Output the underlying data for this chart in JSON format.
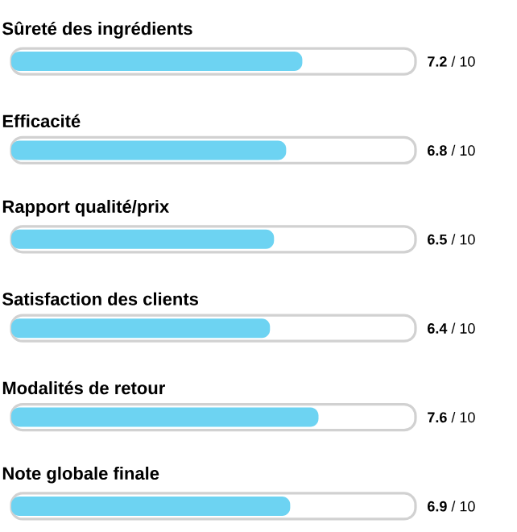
{
  "chart_data": {
    "type": "bar",
    "orientation": "horizontal",
    "categories": [
      "Sûreté des ingrédients",
      "Efficacité",
      "Rapport qualité/prix",
      "Satisfaction des clients",
      "Modalités de retour",
      "Note globale finale"
    ],
    "values": [
      7.2,
      6.8,
      6.5,
      6.4,
      7.6,
      6.9
    ],
    "value_labels": [
      "**7.2** / 10",
      "**6.8** / 10",
      "**6.5** / 10",
      "**6.4** / 10",
      "**7.6** / 10",
      "**6.9** / 10"
    ],
    "color": "#6dd3f2",
    "xlim": [
      0,
      10
    ]
  }
}
